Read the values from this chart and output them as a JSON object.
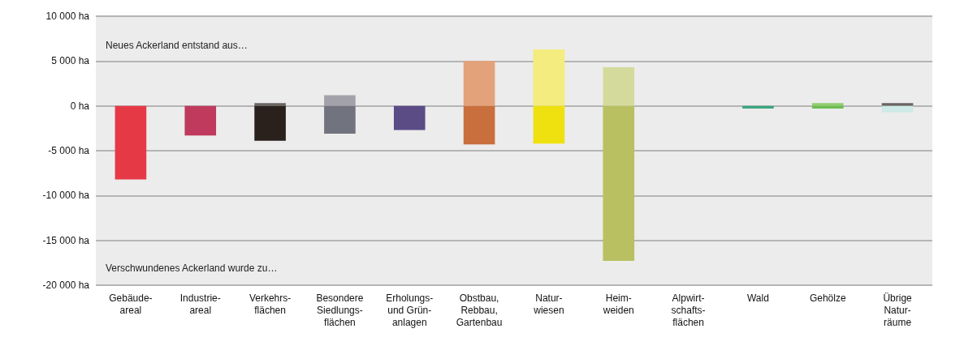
{
  "chart_data": {
    "type": "bar",
    "stacked": true,
    "categories": [
      "Gebäude-\nareal",
      "Industrie-\nareal",
      "Verkehrs-\nflächen",
      "Besondere\nSiedlungs-\nflächen",
      "Erholungs-\nund Grün-\nanlagen",
      "Obstbau,\nRebbau,\nGartenbau",
      "Natur-\nwiesen",
      "Heim-\nweiden",
      "Alpwirt-\nschafts-\nflächen",
      "Wald",
      "Gehölze",
      "Übrige\nNatur-\nräume"
    ],
    "series": [
      {
        "colors": [
          "#e63946",
          "#bf3a5c",
          "#6a6560",
          "#a3a1aa",
          "#5b4c86",
          "#e4a27a",
          "#f4ec7e",
          "#d4da9c",
          "#cccccc",
          "#3aa67e",
          "#8fcd6e",
          "#6a6462"
        ],
        "values": [
          0,
          0,
          300,
          1200,
          0,
          5000,
          6300,
          4300,
          0,
          0,
          300,
          300
        ]
      },
      {
        "colors": [
          "#e63946",
          "#bf3a5c",
          "#2a211d",
          "#71737e",
          "#5b4c86",
          "#c96f3d",
          "#efe10f",
          "#b8c062",
          "#cccccc",
          "#3aa67e",
          "#6bbd4e",
          "#cdeae6"
        ],
        "values": [
          -8200,
          -3300,
          -3900,
          -3100,
          -2700,
          -4300,
          -4200,
          -17300,
          0,
          -300,
          -300,
          -700
        ]
      }
    ],
    "ylim": [
      -20000,
      10000
    ],
    "yticks": [
      {
        "value": -20000,
        "label": "-20 000 ha"
      },
      {
        "value": -15000,
        "label": "-15 000 ha"
      },
      {
        "value": -10000,
        "label": "-10 000 ha"
      },
      {
        "value": -5000,
        "label": "-5 000 ha"
      },
      {
        "value": 0,
        "label": "0 ha"
      },
      {
        "value": 5000,
        "label": "5 000 ha"
      },
      {
        "value": 10000,
        "label": "10 000 ha"
      }
    ],
    "grid": "y",
    "annotations": [
      "Neues Ackerland entstand aus…",
      "Verschwundenes Ackerland wurde zu…"
    ]
  }
}
